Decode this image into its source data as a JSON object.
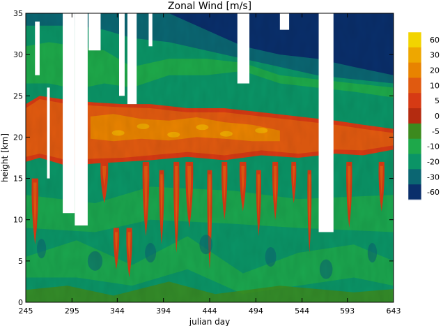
{
  "chart_data": {
    "type": "heatmap",
    "title": "Zonal Wind [m/s]",
    "xlabel": "julian day",
    "ylabel": "height [km]",
    "xlim": [
      245,
      643
    ],
    "ylim": [
      0,
      35
    ],
    "x_ticks": [
      "245",
      "295",
      "344",
      "394",
      "444",
      "494",
      "544",
      "593",
      "643"
    ],
    "y_ticks": [
      "0",
      "5",
      "10",
      "15",
      "20",
      "25",
      "30",
      "35"
    ],
    "colorbar": {
      "labels": [
        "60",
        "30",
        "20",
        "10",
        "5",
        "0",
        "-5",
        "-10",
        "-20",
        "-30",
        "-60"
      ],
      "colors": [
        "#f2d400",
        "#eea700",
        "#e88300",
        "#e05a10",
        "#d63a14",
        "#b42b10",
        "#3c8a1e",
        "#1ea84a",
        "#0b9466",
        "#0b6672",
        "#0a2f6b"
      ]
    },
    "missing_regions": [
      {
        "x": [
          255,
          260
        ],
        "y": [
          27.5,
          34
        ]
      },
      {
        "x": [
          285,
          298
        ],
        "y": [
          10.8,
          35
        ]
      },
      {
        "x": [
          298,
          312
        ],
        "y": [
          9.3,
          35
        ]
      },
      {
        "x": [
          313,
          326
        ],
        "y": [
          30.5,
          35
        ]
      },
      {
        "x": [
          346,
          352
        ],
        "y": [
          25,
          35
        ]
      },
      {
        "x": [
          355,
          365
        ],
        "y": [
          24,
          35
        ]
      },
      {
        "x": [
          268,
          271
        ],
        "y": [
          15,
          26
        ]
      },
      {
        "x": [
          378,
          382
        ],
        "y": [
          31,
          35
        ]
      },
      {
        "x": [
          474,
          487
        ],
        "y": [
          26.5,
          35
        ]
      },
      {
        "x": [
          520,
          530
        ],
        "y": [
          33,
          35
        ]
      },
      {
        "x": [
          562,
          578
        ],
        "y": [
          8.5,
          35
        ]
      }
    ]
  }
}
